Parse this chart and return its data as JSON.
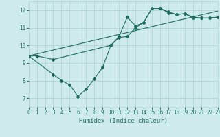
{
  "xlabel": "Humidex (Indice chaleur)",
  "xlim": [
    0,
    23
  ],
  "ylim": [
    6.5,
    12.5
  ],
  "yticks": [
    7,
    8,
    9,
    10,
    11,
    12
  ],
  "xticks": [
    0,
    1,
    2,
    3,
    4,
    5,
    6,
    7,
    8,
    9,
    10,
    11,
    12,
    13,
    14,
    15,
    16,
    17,
    18,
    19,
    20,
    21,
    22,
    23
  ],
  "bg_color": "#ceeaea",
  "grid_color": "#b0d4d4",
  "line_color": "#1a6b5a",
  "line1_x": [
    0,
    1,
    3,
    10,
    11,
    12,
    13,
    14,
    15,
    16,
    17,
    18,
    19,
    20,
    21,
    22,
    23
  ],
  "line1_y": [
    9.4,
    9.4,
    9.2,
    10.0,
    10.5,
    11.6,
    11.1,
    11.3,
    12.1,
    12.1,
    11.9,
    11.75,
    11.8,
    11.55,
    11.55,
    11.55,
    11.6
  ],
  "line2_x": [
    0,
    3,
    4,
    5,
    6,
    7,
    8,
    9,
    10,
    11,
    12,
    13,
    14,
    15,
    16,
    17,
    18,
    19,
    20,
    21,
    22,
    23
  ],
  "line2_y": [
    9.4,
    8.35,
    8.0,
    7.75,
    7.1,
    7.5,
    8.1,
    8.75,
    10.0,
    10.45,
    10.5,
    11.0,
    11.3,
    12.1,
    12.1,
    11.85,
    11.75,
    11.8,
    11.6,
    11.55,
    11.55,
    11.6
  ],
  "line3_x": [
    0,
    23
  ],
  "line3_y": [
    9.4,
    11.95
  ]
}
